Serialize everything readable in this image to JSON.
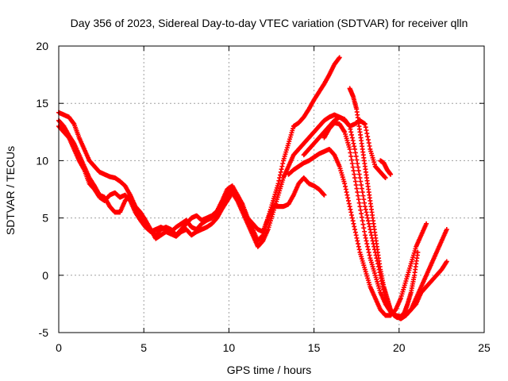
{
  "chart_data": {
    "type": "scatter",
    "title": "Day 356 of 2023, Sidereal Day-to-day VTEC variation (SDTVAR) for receiver qlln",
    "xlabel": "GPS time / hours",
    "ylabel": "SDTVAR / TECUs",
    "xlim": [
      0,
      25
    ],
    "ylim": [
      -5,
      20
    ],
    "xticks": [
      0,
      5,
      10,
      15,
      20,
      25
    ],
    "yticks": [
      -5,
      0,
      5,
      10,
      15,
      20
    ],
    "grid": true,
    "marker": "+",
    "color": "#ff0000",
    "series": [
      {
        "x": [
          0.0,
          0.3,
          0.6,
          0.9,
          1.2,
          1.5,
          1.8,
          2.1,
          2.4,
          2.7,
          3.0,
          3.3,
          3.6,
          3.9,
          4.2,
          4.5,
          4.8,
          5.1,
          5.4,
          5.7,
          6.0,
          6.3,
          6.6,
          6.9,
          7.2,
          7.5,
          7.8,
          8.1,
          8.4,
          8.7,
          9.0,
          9.3,
          9.6,
          9.9,
          10.2,
          10.5,
          10.8,
          11.1,
          11.4,
          11.7,
          12.0,
          12.3,
          12.6,
          12.9,
          13.2,
          13.5,
          13.8,
          14.1,
          14.4,
          14.7,
          15.0,
          15.3,
          15.6,
          15.9,
          16.2,
          16.5
        ],
        "y": [
          13.0,
          12.5,
          12.0,
          11.0,
          10.0,
          9.2,
          8.0,
          7.5,
          6.8,
          6.5,
          7.0,
          7.2,
          6.8,
          7.0,
          6.5,
          5.5,
          4.8,
          4.2,
          3.8,
          4.0,
          4.2,
          4.0,
          3.8,
          4.2,
          4.5,
          4.8,
          4.2,
          4.0,
          4.5,
          4.8,
          5.0,
          5.5,
          6.2,
          7.0,
          7.5,
          7.0,
          6.2,
          5.0,
          4.0,
          3.0,
          3.5,
          5.0,
          6.5,
          8.0,
          10.0,
          11.5,
          13.0,
          13.3,
          13.8,
          14.5,
          15.3,
          16.0,
          16.7,
          17.5,
          18.4,
          19.0
        ]
      },
      {
        "x": [
          0.0,
          0.3,
          0.6,
          0.9,
          1.2,
          1.5,
          1.8,
          2.1,
          2.4,
          2.7,
          3.0,
          3.3,
          3.6,
          3.9,
          4.2,
          4.5,
          4.8,
          5.1,
          5.4,
          5.7,
          6.0,
          6.3,
          6.6,
          6.9,
          7.2,
          7.5,
          7.8,
          8.1,
          8.4,
          8.7,
          9.0,
          9.3,
          9.6,
          9.9,
          10.2,
          10.5,
          10.8,
          11.1,
          11.4,
          11.7,
          12.0,
          12.3,
          12.6,
          12.9,
          13.2,
          13.5,
          13.8,
          14.1,
          14.4,
          14.7,
          15.0,
          15.3,
          15.6
        ],
        "y": [
          14.2,
          14.0,
          13.8,
          13.2,
          12.0,
          11.0,
          10.0,
          9.5,
          9.0,
          8.8,
          8.6,
          8.5,
          8.2,
          7.8,
          7.0,
          6.0,
          5.0,
          4.5,
          4.0,
          3.5,
          4.0,
          4.2,
          4.0,
          3.5,
          4.0,
          4.5,
          5.0,
          5.2,
          4.8,
          5.0,
          5.2,
          5.6,
          6.5,
          7.5,
          7.8,
          7.0,
          6.0,
          5.0,
          4.5,
          4.0,
          3.8,
          5.0,
          6.0,
          6.0,
          6.0,
          6.2,
          7.0,
          8.0,
          8.5,
          8.0,
          7.8,
          7.5,
          7.0
        ]
      },
      {
        "x": [
          0.0,
          0.3,
          0.6,
          0.9,
          1.2,
          1.5,
          1.8,
          2.1,
          2.4,
          2.7,
          3.0,
          3.3,
          3.6,
          3.9,
          4.2,
          4.5,
          4.8,
          5.1,
          5.4,
          5.7,
          6.0,
          6.3,
          6.6,
          6.9,
          7.2,
          7.5,
          7.8,
          8.1,
          8.4,
          8.7,
          9.0,
          9.3,
          9.6,
          9.9,
          10.2,
          10.5,
          10.8,
          11.1,
          11.4,
          11.7,
          12.0,
          12.3,
          12.6,
          12.9,
          13.2,
          13.5,
          13.8,
          14.1,
          14.4,
          14.7,
          15.0,
          15.3,
          15.6,
          15.9,
          16.2,
          16.5,
          16.8,
          17.1,
          17.4,
          17.7,
          18.0,
          18.3,
          18.6,
          18.9,
          19.2
        ],
        "y": [
          13.5,
          13.0,
          12.2,
          11.5,
          10.5,
          9.5,
          8.5,
          7.8,
          7.0,
          6.8,
          6.0,
          5.5,
          5.5,
          6.5,
          7.0,
          6.0,
          5.5,
          4.8,
          4.0,
          3.2,
          3.5,
          3.8,
          3.6,
          3.4,
          3.8,
          4.0,
          3.5,
          3.8,
          4.0,
          4.2,
          4.5,
          5.0,
          5.8,
          6.5,
          7.2,
          6.5,
          5.5,
          4.5,
          3.5,
          2.5,
          3.0,
          4.0,
          5.5,
          7.0,
          8.5,
          9.5,
          10.5,
          11.0,
          11.5,
          12.0,
          12.5,
          13.0,
          13.5,
          13.8,
          14.0,
          13.8,
          13.5,
          13.0,
          13.2,
          13.5,
          13.2,
          11.0,
          9.5,
          9.0,
          8.5
        ]
      },
      {
        "x": [
          14.4,
          14.7,
          15.0,
          15.3,
          15.6,
          15.9,
          16.2,
          16.5,
          16.8,
          17.1,
          17.4,
          17.7,
          18.0,
          18.3,
          18.6,
          18.9,
          19.2,
          19.5,
          19.8,
          20.1,
          20.4,
          20.7,
          21.0,
          21.3,
          21.6,
          21.9,
          22.2,
          22.5,
          22.8
        ],
        "y": [
          10.5,
          11.0,
          11.5,
          12.0,
          12.5,
          13.0,
          13.5,
          13.8,
          13.6,
          13.0,
          11.0,
          8.5,
          6.0,
          4.0,
          2.0,
          0.0,
          -2.0,
          -3.0,
          -3.5,
          -3.8,
          -3.5,
          -3.0,
          -2.5,
          -1.5,
          -1.0,
          -0.5,
          0.0,
          0.5,
          1.2
        ]
      },
      {
        "x": [
          15.6,
          15.9,
          16.2,
          16.5,
          16.8,
          17.1,
          17.4,
          17.7,
          18.0,
          18.3,
          18.6,
          18.9,
          19.2,
          19.5,
          19.8,
          20.1,
          20.4,
          20.7,
          21.0,
          21.3,
          21.6,
          21.9,
          22.2,
          22.5,
          22.8
        ],
        "y": [
          12.0,
          12.8,
          13.3,
          13.2,
          12.5,
          11.0,
          8.5,
          6.0,
          3.5,
          1.5,
          0.0,
          -1.5,
          -2.5,
          -3.2,
          -3.5,
          -3.6,
          -3.4,
          -3.0,
          -2.0,
          -1.0,
          0.0,
          1.0,
          2.0,
          3.0,
          4.0
        ]
      },
      {
        "x": [
          13.5,
          13.8,
          14.1,
          14.4,
          14.7,
          15.0,
          15.3,
          15.6,
          15.9,
          16.2,
          16.5,
          16.8,
          17.1,
          17.4,
          17.7,
          18.0,
          18.3,
          18.6,
          18.9,
          19.2,
          19.5,
          19.8,
          20.1,
          20.4,
          20.7,
          21.0,
          21.3,
          21.6
        ],
        "y": [
          8.8,
          9.2,
          9.5,
          9.8,
          10.0,
          10.3,
          10.6,
          10.8,
          11.0,
          10.5,
          9.5,
          8.0,
          6.0,
          4.0,
          2.0,
          0.5,
          -1.0,
          -2.0,
          -3.0,
          -3.5,
          -3.5,
          -3.0,
          -2.0,
          -0.5,
          1.0,
          2.5,
          3.5,
          4.5
        ]
      },
      {
        "x": [
          17.1,
          17.3,
          17.5,
          17.7,
          17.9,
          18.1,
          18.3,
          18.5,
          18.7,
          18.9,
          19.1,
          19.3,
          19.5,
          19.7,
          19.9,
          20.1,
          20.3,
          20.5,
          20.7,
          20.9,
          21.1
        ],
        "y": [
          16.3,
          15.6,
          14.5,
          12.5,
          10.5,
          8.5,
          6.5,
          4.5,
          2.5,
          0.5,
          -1.0,
          -2.0,
          -3.0,
          -3.5,
          -3.7,
          -3.6,
          -3.3,
          -2.5,
          -1.5,
          0.0,
          2.0
        ]
      },
      {
        "x": [
          18.9,
          19.1,
          19.3,
          19.5
        ],
        "y": [
          10.0,
          9.8,
          9.2,
          8.8
        ]
      }
    ]
  }
}
